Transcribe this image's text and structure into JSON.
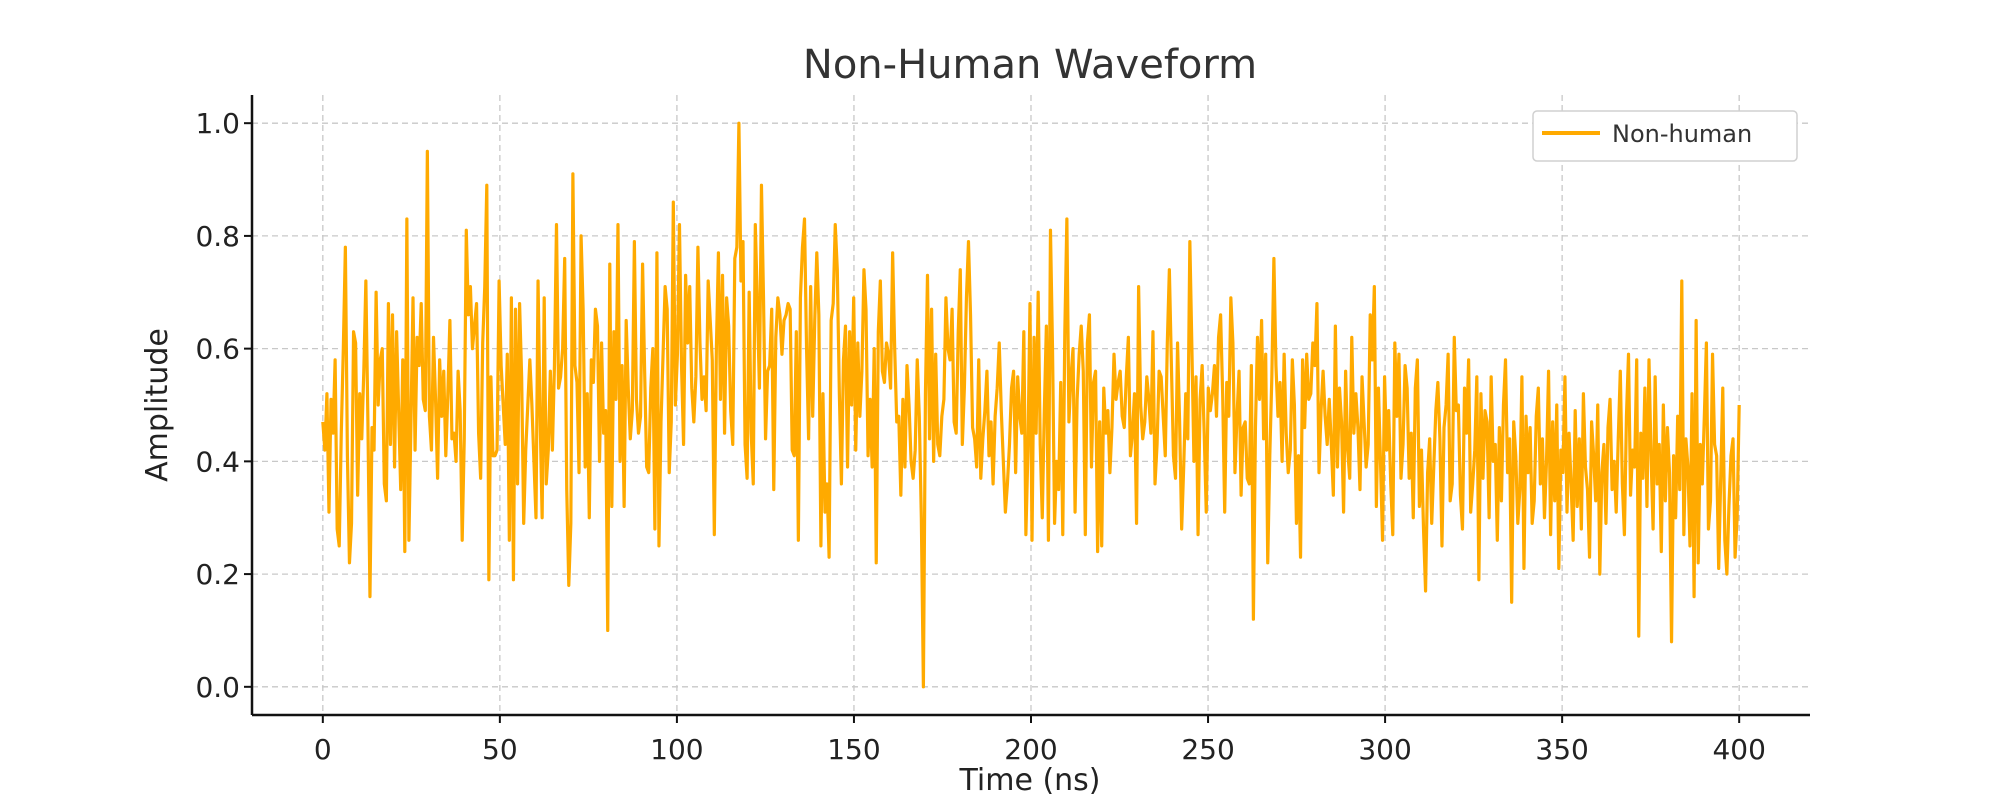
{
  "chart_data": {
    "type": "line",
    "title": "Non-Human Waveform",
    "xlabel": "Time (ns)",
    "ylabel": "Amplitude",
    "xlim": [
      -20,
      420
    ],
    "ylim": [
      -0.05,
      1.05
    ],
    "xticks": [
      0,
      50,
      100,
      150,
      200,
      250,
      300,
      350,
      400
    ],
    "yticks": [
      0.0,
      0.2,
      0.4,
      0.6,
      0.8,
      1.0
    ],
    "xtick_labels": [
      "0",
      "50",
      "100",
      "150",
      "200",
      "250",
      "300",
      "350",
      "400"
    ],
    "ytick_labels": [
      "0.0",
      "0.2",
      "0.4",
      "0.6",
      "0.8",
      "1.0"
    ],
    "grid": true,
    "legend_position": "top-right",
    "x_step": 1,
    "series": [
      {
        "name": "Non-human",
        "color": "#FFAA00",
        "values": [
          0.47,
          0.42,
          0.52,
          0.31,
          0.51,
          0.45,
          0.58,
          0.28,
          0.25,
          0.45,
          0.6,
          0.78,
          0.41,
          0.22,
          0.29,
          0.63,
          0.61,
          0.34,
          0.52,
          0.44,
          0.56,
          0.72,
          0.47,
          0.16,
          0.46,
          0.42,
          0.7,
          0.5,
          0.58,
          0.6,
          0.36,
          0.33,
          0.68,
          0.43,
          0.66,
          0.39,
          0.63,
          0.49,
          0.35,
          0.58,
          0.24,
          0.83,
          0.26,
          0.47,
          0.69,
          0.42,
          0.62,
          0.57,
          0.68,
          0.51,
          0.49,
          0.95,
          0.48,
          0.42,
          0.62,
          0.51,
          0.37,
          0.58,
          0.48,
          0.56,
          0.41,
          0.52,
          0.65,
          0.44,
          0.45,
          0.4,
          0.56,
          0.49,
          0.26,
          0.44,
          0.81,
          0.66,
          0.71,
          0.6,
          0.64,
          0.68,
          0.45,
          0.37,
          0.61,
          0.71,
          0.89,
          0.19,
          0.55,
          0.41,
          0.41,
          0.42,
          0.72,
          0.57,
          0.5,
          0.43,
          0.59,
          0.26,
          0.69,
          0.19,
          0.67,
          0.36,
          0.68,
          0.55,
          0.29,
          0.42,
          0.5,
          0.58,
          0.5,
          0.4,
          0.3,
          0.72,
          0.48,
          0.3,
          0.69,
          0.36,
          0.42,
          0.56,
          0.42,
          0.57,
          0.82,
          0.53,
          0.55,
          0.6,
          0.76,
          0.35,
          0.18,
          0.29,
          0.91,
          0.57,
          0.54,
          0.38,
          0.8,
          0.67,
          0.39,
          0.52,
          0.3,
          0.58,
          0.54,
          0.67,
          0.64,
          0.4,
          0.61,
          0.45,
          0.49,
          0.1,
          0.75,
          0.32,
          0.63,
          0.51,
          0.82,
          0.4,
          0.57,
          0.32,
          0.65,
          0.53,
          0.44,
          0.49,
          0.79,
          0.51,
          0.45,
          0.48,
          0.75,
          0.56,
          0.39,
          0.38,
          0.53,
          0.6,
          0.28,
          0.77,
          0.25,
          0.47,
          0.59,
          0.71,
          0.67,
          0.38,
          0.47,
          0.86,
          0.5,
          0.59,
          0.82,
          0.57,
          0.43,
          0.73,
          0.61,
          0.71,
          0.53,
          0.47,
          0.55,
          0.78,
          0.61,
          0.51,
          0.55,
          0.49,
          0.72,
          0.65,
          0.58,
          0.27,
          0.6,
          0.77,
          0.51,
          0.73,
          0.45,
          0.69,
          0.64,
          0.49,
          0.43,
          0.76,
          0.78,
          1.0,
          0.72,
          0.79,
          0.43,
          0.37,
          0.7,
          0.45,
          0.36,
          0.82,
          0.68,
          0.53,
          0.89,
          0.69,
          0.44,
          0.56,
          0.57,
          0.67,
          0.35,
          0.62,
          0.69,
          0.66,
          0.59,
          0.65,
          0.66,
          0.68,
          0.67,
          0.42,
          0.41,
          0.63,
          0.26,
          0.69,
          0.78,
          0.83,
          0.6,
          0.44,
          0.71,
          0.48,
          0.65,
          0.77,
          0.66,
          0.25,
          0.52,
          0.31,
          0.36,
          0.23,
          0.65,
          0.68,
          0.82,
          0.74,
          0.52,
          0.36,
          0.58,
          0.64,
          0.39,
          0.63,
          0.5,
          0.69,
          0.42,
          0.61,
          0.48,
          0.56,
          0.74,
          0.67,
          0.41,
          0.51,
          0.39,
          0.6,
          0.22,
          0.63,
          0.72,
          0.56,
          0.54,
          0.61,
          0.59,
          0.53,
          0.77,
          0.6,
          0.47,
          0.48,
          0.34,
          0.51,
          0.39,
          0.57,
          0.5,
          0.4,
          0.37,
          0.42,
          0.58,
          0.48,
          0.3,
          0.0,
          0.52,
          0.73,
          0.44,
          0.67,
          0.4,
          0.59,
          0.43,
          0.41,
          0.48,
          0.51,
          0.69,
          0.6,
          0.58,
          0.67,
          0.47,
          0.45,
          0.63,
          0.74,
          0.43,
          0.53,
          0.69,
          0.79,
          0.66,
          0.46,
          0.44,
          0.39,
          0.58,
          0.37,
          0.44,
          0.49,
          0.56,
          0.41,
          0.47,
          0.36,
          0.48,
          0.53,
          0.61,
          0.49,
          0.4,
          0.31,
          0.36,
          0.43,
          0.53,
          0.56,
          0.38,
          0.55,
          0.48,
          0.45,
          0.63,
          0.27,
          0.42,
          0.68,
          0.26,
          0.62,
          0.45,
          0.7,
          0.43,
          0.3,
          0.49,
          0.64,
          0.26,
          0.81,
          0.6,
          0.29,
          0.4,
          0.35,
          0.54,
          0.27,
          0.63,
          0.83,
          0.47,
          0.55,
          0.6,
          0.31,
          0.51,
          0.59,
          0.64,
          0.56,
          0.27,
          0.61,
          0.66,
          0.39,
          0.54,
          0.56,
          0.24,
          0.47,
          0.25,
          0.53,
          0.45,
          0.49,
          0.38,
          0.46,
          0.59,
          0.51,
          0.54,
          0.56,
          0.48,
          0.46,
          0.55,
          0.62,
          0.41,
          0.45,
          0.52,
          0.29,
          0.71,
          0.5,
          0.44,
          0.47,
          0.55,
          0.51,
          0.45,
          0.63,
          0.36,
          0.43,
          0.56,
          0.55,
          0.48,
          0.41,
          0.61,
          0.74,
          0.57,
          0.41,
          0.37,
          0.61,
          0.47,
          0.28,
          0.39,
          0.52,
          0.44,
          0.79,
          0.6,
          0.4,
          0.55,
          0.27,
          0.51,
          0.57,
          0.45,
          0.31,
          0.53,
          0.49,
          0.52,
          0.57,
          0.48,
          0.62,
          0.66,
          0.52,
          0.31,
          0.54,
          0.48,
          0.69,
          0.61,
          0.38,
          0.48,
          0.56,
          0.34,
          0.46,
          0.47,
          0.37,
          0.36,
          0.57,
          0.12,
          0.46,
          0.62,
          0.51,
          0.65,
          0.44,
          0.59,
          0.22,
          0.41,
          0.55,
          0.76,
          0.57,
          0.48,
          0.54,
          0.4,
          0.59,
          0.45,
          0.38,
          0.42,
          0.58,
          0.5,
          0.29,
          0.41,
          0.23,
          0.58,
          0.46,
          0.59,
          0.51,
          0.52,
          0.61,
          0.57,
          0.68,
          0.38,
          0.49,
          0.56,
          0.48,
          0.43,
          0.51,
          0.43,
          0.34,
          0.64,
          0.39,
          0.53,
          0.47,
          0.31,
          0.56,
          0.42,
          0.37,
          0.62,
          0.45,
          0.52,
          0.46,
          0.35,
          0.55,
          0.47,
          0.39,
          0.43,
          0.66,
          0.58,
          0.71,
          0.32,
          0.53,
          0.4,
          0.26,
          0.55,
          0.42,
          0.49,
          0.36,
          0.27,
          0.61,
          0.48,
          0.59,
          0.37,
          0.43,
          0.57,
          0.53,
          0.37,
          0.45,
          0.3,
          0.53,
          0.58,
          0.32,
          0.42,
          0.28,
          0.17,
          0.38,
          0.44,
          0.29,
          0.39,
          0.49,
          0.54,
          0.44,
          0.25,
          0.46,
          0.5,
          0.59,
          0.33,
          0.36,
          0.62,
          0.49,
          0.5,
          0.34,
          0.28,
          0.53,
          0.45,
          0.58,
          0.31,
          0.36,
          0.42,
          0.55,
          0.19,
          0.52,
          0.37,
          0.49,
          0.47,
          0.3,
          0.55,
          0.4,
          0.43,
          0.26,
          0.46,
          0.33,
          0.5,
          0.58,
          0.38,
          0.44,
          0.15,
          0.47,
          0.41,
          0.29,
          0.35,
          0.55,
          0.21,
          0.48,
          0.38,
          0.46,
          0.29,
          0.33,
          0.48,
          0.53,
          0.36,
          0.44,
          0.3,
          0.4,
          0.56,
          0.27,
          0.47,
          0.33,
          0.5,
          0.21,
          0.42,
          0.38,
          0.55,
          0.31,
          0.45,
          0.36,
          0.26,
          0.49,
          0.32,
          0.44,
          0.28,
          0.52,
          0.39,
          0.35,
          0.23,
          0.47,
          0.41,
          0.33,
          0.5,
          0.2,
          0.38,
          0.43,
          0.29,
          0.46,
          0.51,
          0.35,
          0.4,
          0.31,
          0.44,
          0.56,
          0.36,
          0.27,
          0.48,
          0.59,
          0.34,
          0.42,
          0.39,
          0.58,
          0.09,
          0.45,
          0.37,
          0.53,
          0.32,
          0.58,
          0.41,
          0.28,
          0.55,
          0.36,
          0.43,
          0.24,
          0.5,
          0.33,
          0.46,
          0.38,
          0.08,
          0.41,
          0.3,
          0.48,
          0.35,
          0.72,
          0.27,
          0.44,
          0.39,
          0.25,
          0.52,
          0.16,
          0.65,
          0.22,
          0.43,
          0.36,
          0.48,
          0.61,
          0.28,
          0.33,
          0.59,
          0.43,
          0.41,
          0.21,
          0.37,
          0.53,
          0.26,
          0.2,
          0.32,
          0.41,
          0.44,
          0.23,
          0.3,
          0.5
        ]
      }
    ]
  }
}
